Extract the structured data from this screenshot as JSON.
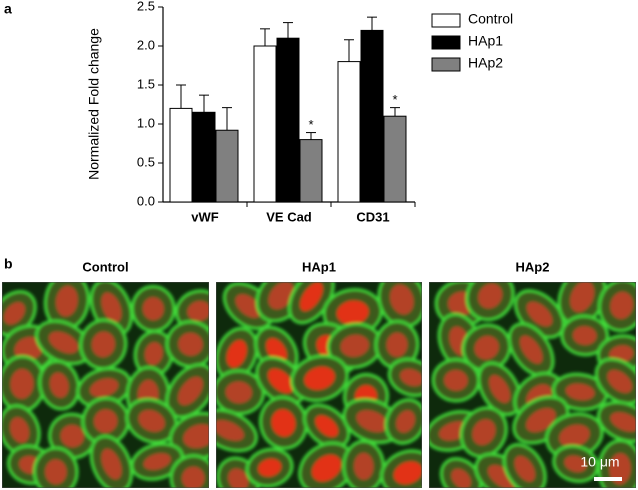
{
  "panel_labels": [
    "a",
    "b"
  ],
  "chart_data": {
    "type": "bar",
    "ylabel": "Normalized Fold change",
    "categories": [
      "vWF",
      "VE Cad",
      "CD31"
    ],
    "series": [
      {
        "name": "Control",
        "color": "#ffffff",
        "values": [
          1.2,
          2.0,
          1.8
        ],
        "errors": [
          0.3,
          0.22,
          0.28
        ]
      },
      {
        "name": "HAp1",
        "color": "#000000",
        "values": [
          1.15,
          2.1,
          2.2
        ],
        "errors": [
          0.22,
          0.2,
          0.17
        ]
      },
      {
        "name": "HAp2",
        "color": "#808080",
        "values": [
          0.92,
          0.8,
          1.1
        ],
        "errors": [
          0.29,
          0.09,
          0.11
        ],
        "annotations": [
          null,
          "*",
          "*"
        ]
      }
    ],
    "ylim": [
      0,
      2.5
    ],
    "yticks": [
      {
        "value": 0,
        "label": "0.0"
      },
      0.5,
      {
        "value": 1,
        "label": "1.0"
      },
      1.5,
      {
        "value": 2,
        "label": "2.0"
      },
      2.5
    ],
    "legend": "upper right"
  },
  "images": {
    "titles": [
      "Control",
      "HAp1",
      "HAp2"
    ],
    "scale_bar": "10 μm"
  }
}
